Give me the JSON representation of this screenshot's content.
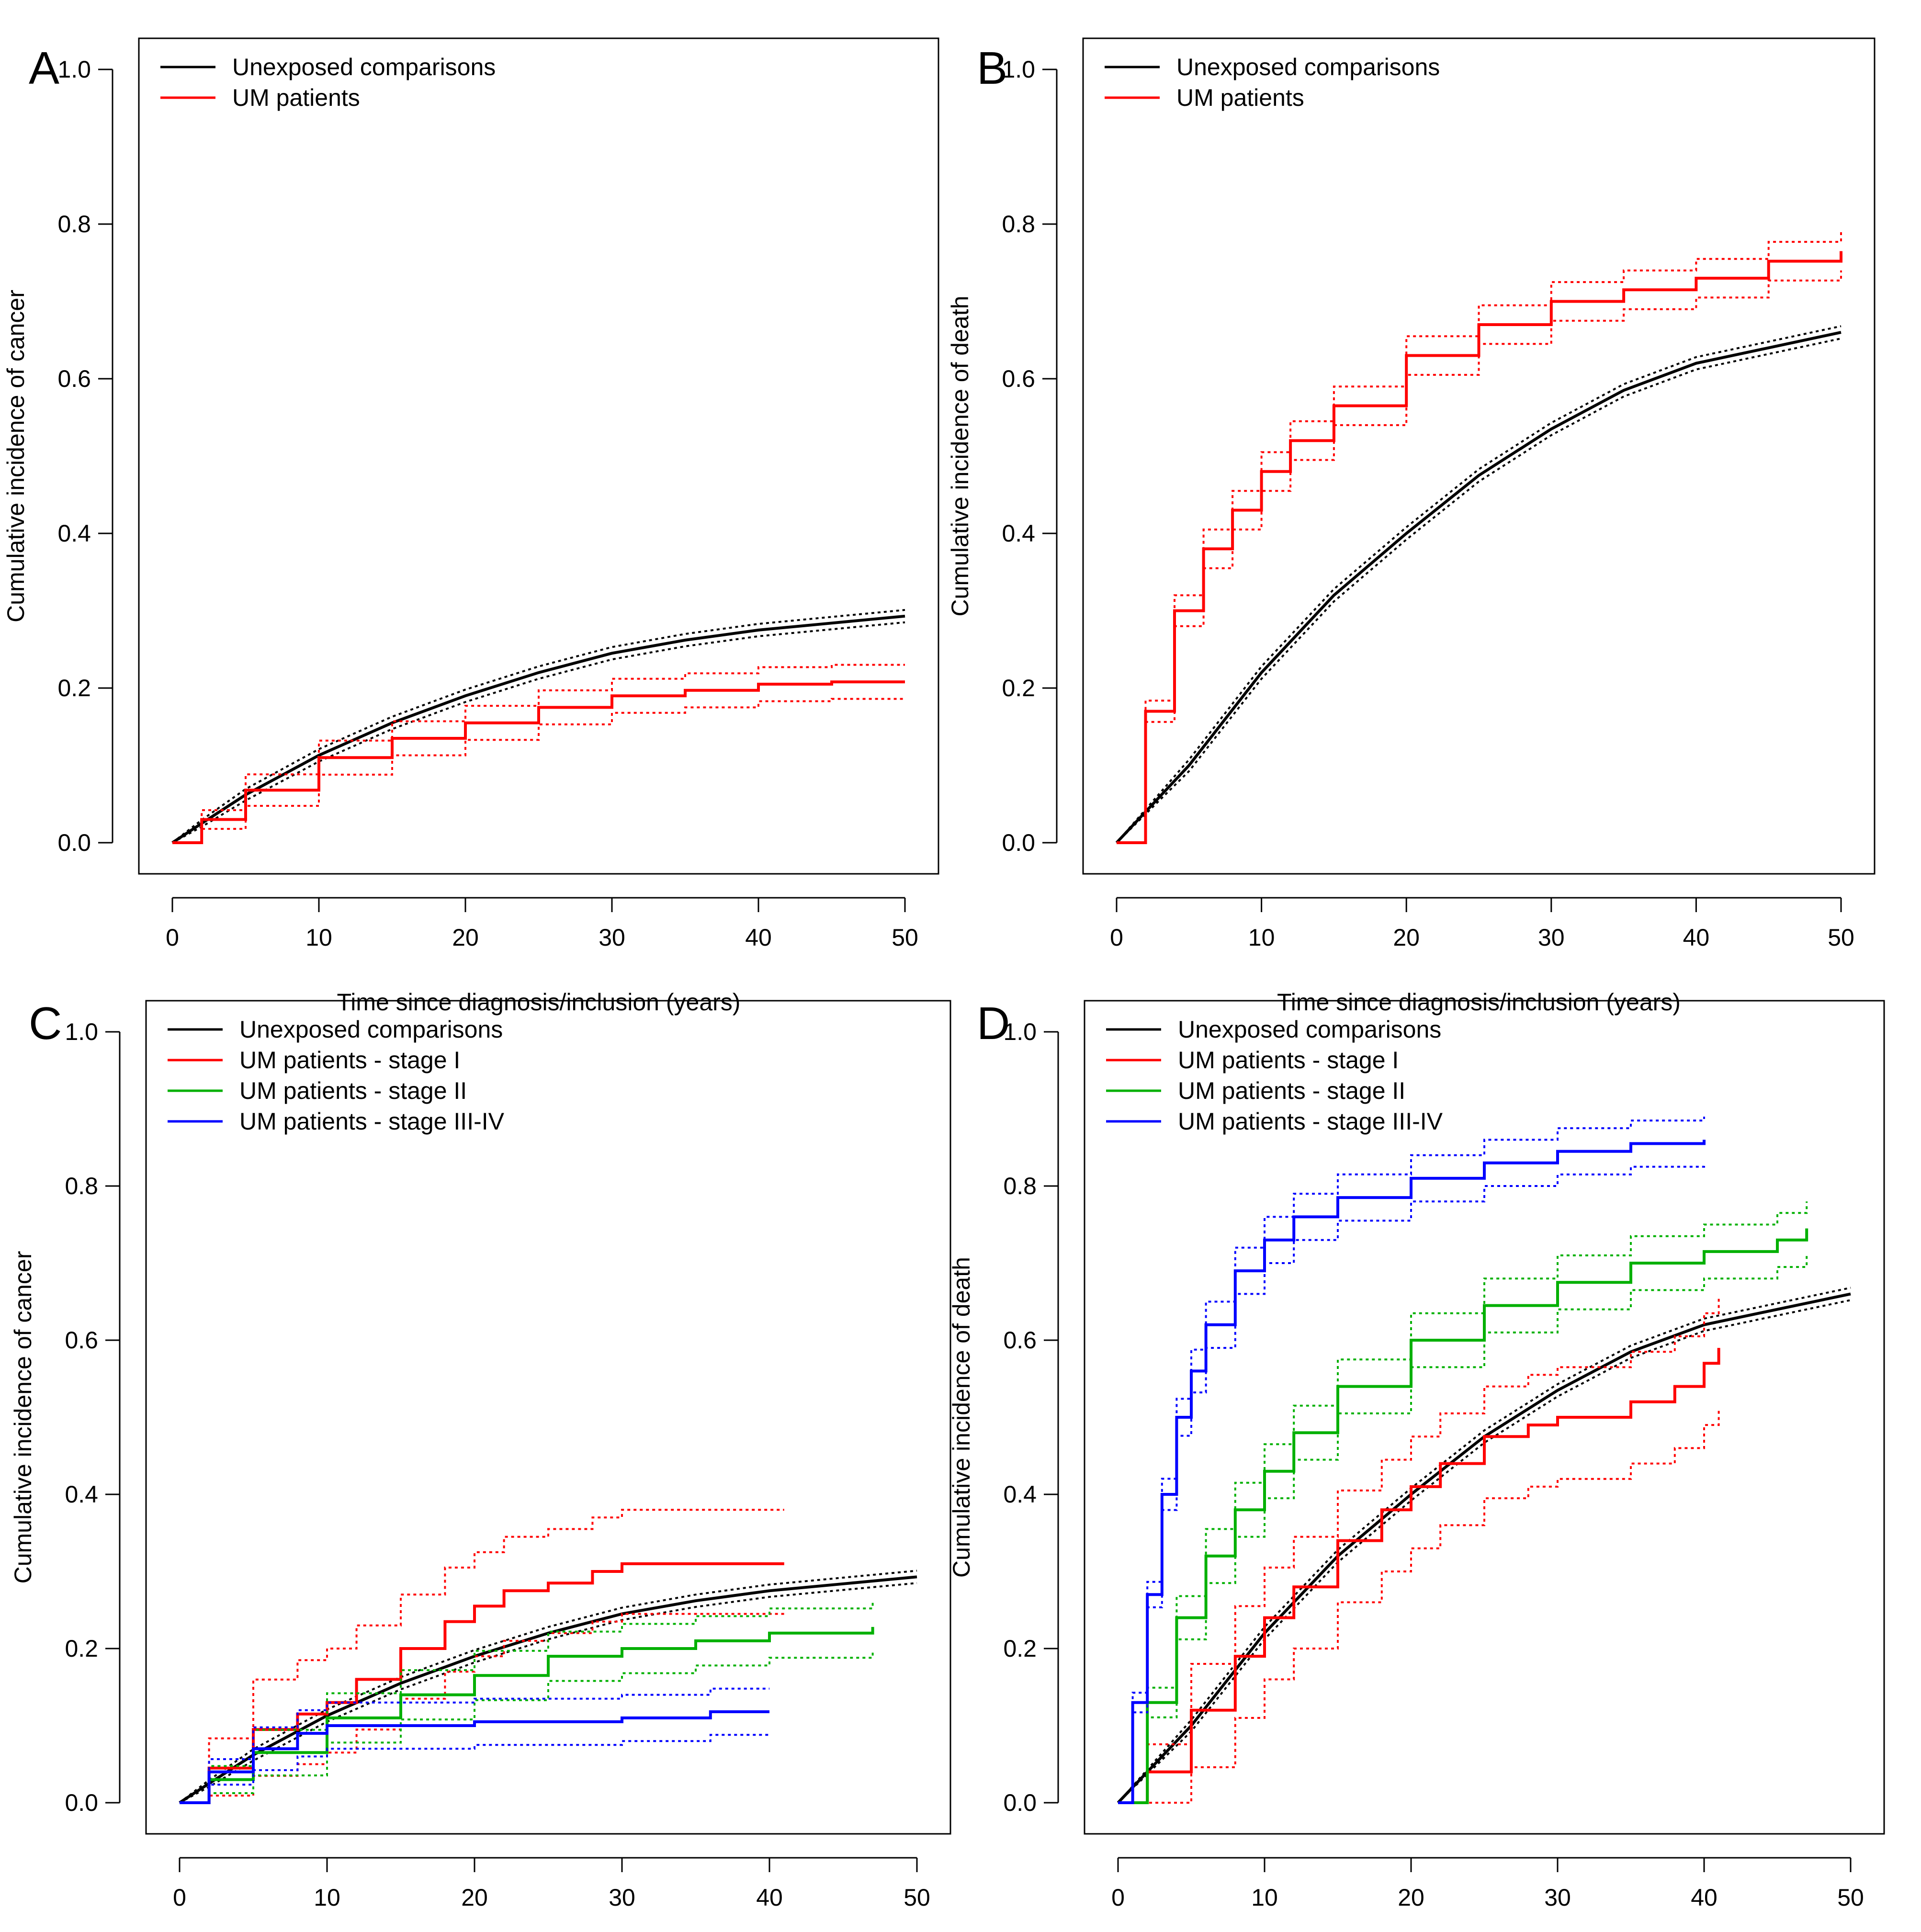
{
  "figure": {
    "legend_placement": "top-left"
  },
  "chart_data": [
    {
      "id": "A",
      "type": "line",
      "panel_label": "A",
      "xlabel": "Time since diagnosis/inclusion (years)",
      "ylabel": "Cumulative incidence of cancer",
      "xlim": [
        0,
        50
      ],
      "ylim": [
        0,
        1
      ],
      "xticks": [
        "0",
        "10",
        "20",
        "30",
        "40",
        "50"
      ],
      "yticks": [
        "0.0",
        "0.2",
        "0.4",
        "0.6",
        "0.8",
        "1.0"
      ],
      "series": [
        {
          "name": "Unexposed comparisons",
          "color": "#000000",
          "legend": true,
          "x": [
            0,
            2,
            5,
            10,
            15,
            20,
            25,
            30,
            35,
            40,
            45,
            50
          ],
          "y": [
            0,
            0.025,
            0.062,
            0.113,
            0.155,
            0.19,
            0.22,
            0.245,
            0.262,
            0.275,
            0.284,
            0.293
          ],
          "band": 0.008
        },
        {
          "name": "UM patients",
          "color": "#ff0000",
          "legend": true,
          "x": [
            0,
            2,
            5,
            10,
            15,
            20,
            25,
            30,
            35,
            40,
            45,
            50
          ],
          "y": [
            0,
            0.03,
            0.068,
            0.11,
            0.135,
            0.155,
            0.175,
            0.19,
            0.197,
            0.205,
            0.208,
            0.208
          ],
          "band": 0.022
        }
      ]
    },
    {
      "id": "B",
      "type": "line",
      "panel_label": "B",
      "xlabel": "Time since diagnosis/inclusion (years)",
      "ylabel": "Cumulative incidence of death",
      "xlim": [
        0,
        50
      ],
      "ylim": [
        0,
        1
      ],
      "xticks": [
        "0",
        "10",
        "20",
        "30",
        "40",
        "50"
      ],
      "yticks": [
        "0.0",
        "0.2",
        "0.4",
        "0.6",
        "0.8",
        "1.0"
      ],
      "series": [
        {
          "name": "Unexposed comparisons",
          "color": "#000000",
          "legend": true,
          "x": [
            0,
            5,
            10,
            15,
            20,
            25,
            30,
            35,
            40,
            45,
            50
          ],
          "y": [
            0,
            0.1,
            0.22,
            0.32,
            0.4,
            0.475,
            0.535,
            0.585,
            0.62,
            0.64,
            0.66
          ],
          "band": 0.008
        },
        {
          "name": "UM patients",
          "color": "#ff0000",
          "legend": true,
          "x": [
            0,
            2,
            4,
            6,
            8,
            10,
            12,
            15,
            20,
            25,
            30,
            35,
            40,
            45,
            50
          ],
          "y": [
            0,
            0.17,
            0.3,
            0.38,
            0.43,
            0.48,
            0.52,
            0.565,
            0.63,
            0.67,
            0.7,
            0.715,
            0.73,
            0.752,
            0.765
          ],
          "band": 0.025
        }
      ]
    },
    {
      "id": "C",
      "type": "line",
      "panel_label": "C",
      "xlabel": "Time since diagnosis/inclusion (years)",
      "ylabel": "Cumulative incidence of cancer",
      "xlim": [
        0,
        50
      ],
      "ylim": [
        0,
        1
      ],
      "xticks": [
        "0",
        "10",
        "20",
        "30",
        "40",
        "50"
      ],
      "yticks": [
        "0.0",
        "0.2",
        "0.4",
        "0.6",
        "0.8",
        "1.0"
      ],
      "series": [
        {
          "name": "Unexposed comparisons",
          "color": "#000000",
          "legend": true,
          "x": [
            0,
            2,
            5,
            10,
            15,
            20,
            25,
            30,
            35,
            40,
            45,
            50
          ],
          "y": [
            0,
            0.025,
            0.062,
            0.113,
            0.155,
            0.19,
            0.22,
            0.245,
            0.262,
            0.275,
            0.284,
            0.293
          ],
          "band": 0.008
        },
        {
          "name": "UM patients - stage I",
          "color": "#ff0000",
          "legend": true,
          "x": [
            0,
            2,
            5,
            8,
            10,
            12,
            15,
            18,
            20,
            22,
            25,
            28,
            30,
            41
          ],
          "y": [
            0,
            0.045,
            0.095,
            0.115,
            0.13,
            0.16,
            0.2,
            0.235,
            0.255,
            0.275,
            0.285,
            0.3,
            0.31,
            0.31
          ],
          "band_upper": 0.07,
          "band_lower": 0.065
        },
        {
          "name": "UM patients - stage II",
          "color": "#00b000",
          "legend": true,
          "x": [
            0,
            2,
            5,
            10,
            15,
            20,
            25,
            30,
            35,
            40,
            47
          ],
          "y": [
            0,
            0.03,
            0.065,
            0.11,
            0.14,
            0.165,
            0.19,
            0.2,
            0.21,
            0.22,
            0.228
          ],
          "band": 0.032
        },
        {
          "name": "UM patients - stage III-IV",
          "color": "#0000ff",
          "legend": true,
          "x": [
            0,
            2,
            5,
            8,
            10,
            15,
            20,
            30,
            35,
            36,
            40
          ],
          "y": [
            0,
            0.04,
            0.07,
            0.09,
            0.1,
            0.1,
            0.105,
            0.11,
            0.11,
            0.118,
            0.118
          ],
          "band": 0.03
        }
      ]
    },
    {
      "id": "D",
      "type": "line",
      "panel_label": "D",
      "xlabel": "Time since diagnosis/inclusion (years)",
      "ylabel": "Cumulative incidence of death",
      "xlim": [
        0,
        50
      ],
      "ylim": [
        0,
        1
      ],
      "xticks": [
        "0",
        "10",
        "20",
        "30",
        "40",
        "50"
      ],
      "yticks": [
        "0.0",
        "0.2",
        "0.4",
        "0.6",
        "0.8",
        "1.0"
      ],
      "series": [
        {
          "name": "Unexposed comparisons",
          "color": "#000000",
          "legend": true,
          "x": [
            0,
            5,
            10,
            15,
            20,
            25,
            30,
            35,
            40,
            45,
            50
          ],
          "y": [
            0,
            0.1,
            0.22,
            0.32,
            0.4,
            0.475,
            0.535,
            0.585,
            0.62,
            0.64,
            0.66
          ],
          "band": 0.008
        },
        {
          "name": "UM patients - stage I",
          "color": "#ff0000",
          "legend": true,
          "x": [
            0,
            2,
            5,
            8,
            10,
            12,
            15,
            18,
            20,
            22,
            25,
            28,
            30,
            35,
            38,
            40,
            41
          ],
          "y": [
            0,
            0.04,
            0.12,
            0.19,
            0.24,
            0.28,
            0.34,
            0.38,
            0.41,
            0.44,
            0.475,
            0.49,
            0.5,
            0.52,
            0.54,
            0.57,
            0.59
          ],
          "band_upper": 0.065,
          "band_lower": 0.08
        },
        {
          "name": "UM patients - stage II",
          "color": "#00b000",
          "legend": true,
          "x": [
            0,
            2,
            4,
            6,
            8,
            10,
            12,
            15,
            20,
            25,
            30,
            35,
            40,
            45,
            47
          ],
          "y": [
            0,
            0.13,
            0.24,
            0.32,
            0.38,
            0.43,
            0.48,
            0.54,
            0.6,
            0.645,
            0.675,
            0.7,
            0.715,
            0.73,
            0.745
          ],
          "band": 0.035
        },
        {
          "name": "UM patients - stage III-IV",
          "color": "#0000ff",
          "legend": true,
          "x": [
            0,
            1,
            2,
            3,
            4,
            5,
            6,
            8,
            10,
            12,
            15,
            20,
            25,
            30,
            35,
            40
          ],
          "y": [
            0,
            0.13,
            0.27,
            0.4,
            0.5,
            0.56,
            0.62,
            0.69,
            0.73,
            0.76,
            0.785,
            0.81,
            0.83,
            0.845,
            0.855,
            0.86
          ],
          "band": 0.03
        }
      ]
    }
  ]
}
